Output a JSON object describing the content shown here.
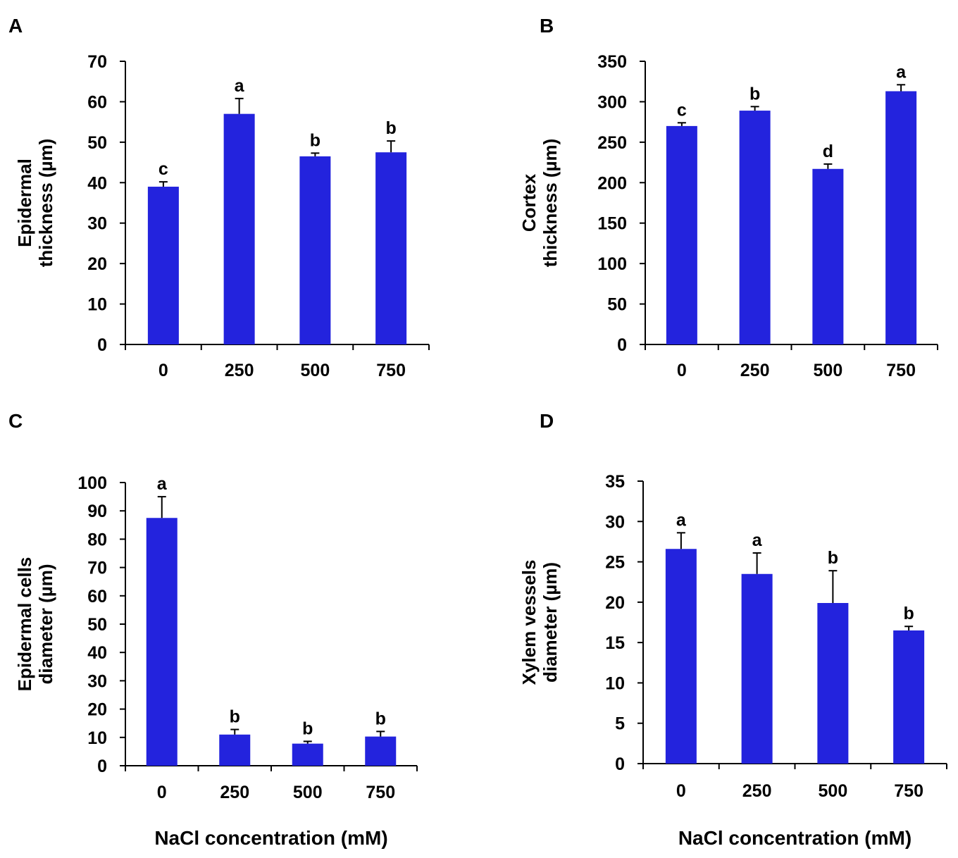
{
  "colors": {
    "bar": "#2323DD",
    "axis": "#000000"
  },
  "x_axis_title": "NaCl concentration (mM)",
  "chart_data": [
    {
      "panel": "A",
      "type": "bar",
      "categories": [
        "0",
        "250",
        "500",
        "750"
      ],
      "values": [
        39,
        57,
        46.5,
        47.5
      ],
      "errors": [
        1.2,
        3.8,
        0.8,
        2.8
      ],
      "significance": [
        "c",
        "a",
        "b",
        "b"
      ],
      "ylabel_lines": [
        "Epidermal",
        "thickness (µm)"
      ],
      "ylim": [
        0,
        70
      ],
      "yticks": [
        0,
        10,
        20,
        30,
        40,
        50,
        60,
        70
      ],
      "xlabel": ""
    },
    {
      "panel": "B",
      "type": "bar",
      "categories": [
        "0",
        "250",
        "500",
        "750"
      ],
      "values": [
        270,
        289,
        217,
        313
      ],
      "errors": [
        4,
        5,
        6,
        8
      ],
      "significance": [
        "c",
        "b",
        "d",
        "a"
      ],
      "ylabel_lines": [
        "Cortex",
        "thickness (µm)"
      ],
      "ylim": [
        0,
        350
      ],
      "yticks": [
        0,
        50,
        100,
        150,
        200,
        250,
        300,
        350
      ],
      "xlabel": ""
    },
    {
      "panel": "C",
      "type": "bar",
      "categories": [
        "0",
        "250",
        "500",
        "750"
      ],
      "values": [
        87.5,
        11,
        7.8,
        10.3
      ],
      "errors": [
        7.5,
        1.8,
        0.8,
        1.8
      ],
      "significance": [
        "a",
        "b",
        "b",
        "b"
      ],
      "ylabel_lines": [
        "Epidermal cells",
        "diameter (µm)"
      ],
      "ylim": [
        0,
        100
      ],
      "yticks": [
        0,
        10,
        20,
        30,
        40,
        50,
        60,
        70,
        80,
        90,
        100
      ],
      "xlabel": "NaCl concentration (mM)"
    },
    {
      "panel": "D",
      "type": "bar",
      "categories": [
        "0",
        "250",
        "500",
        "750"
      ],
      "values": [
        26.6,
        23.5,
        19.9,
        16.5
      ],
      "errors": [
        2,
        2.6,
        4,
        0.5
      ],
      "significance": [
        "a",
        "a",
        "b",
        "b"
      ],
      "ylabel_lines": [
        "Xylem vessels",
        "diameter (µm)"
      ],
      "ylim": [
        0,
        35
      ],
      "yticks": [
        0,
        5,
        10,
        15,
        20,
        25,
        30,
        35
      ],
      "xlabel": "NaCl concentration (mM)"
    }
  ]
}
